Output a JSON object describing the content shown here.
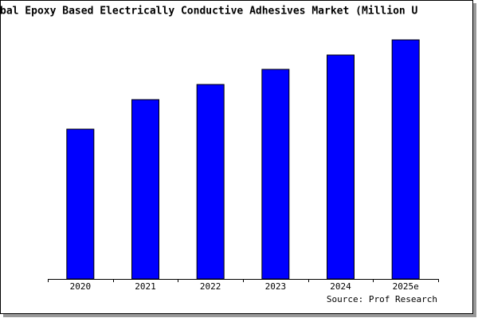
{
  "chart_data": {
    "type": "bar",
    "title": "bal Epoxy Based Electrically Conductive Adhesives Market (Million U",
    "categories": [
      "2020",
      "2021",
      "2022",
      "2023",
      "2024",
      "2025e"
    ],
    "values": [
      188,
      225,
      244,
      263,
      281,
      300
    ],
    "color": "#0000ff",
    "source": "Source: Prof Research"
  }
}
